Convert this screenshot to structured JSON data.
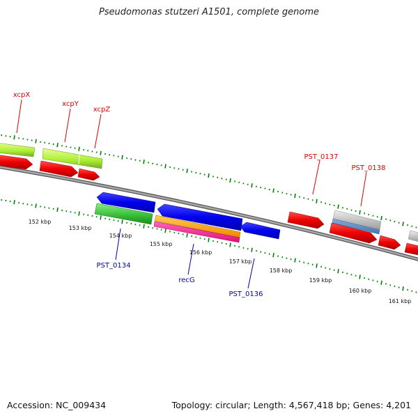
{
  "title": "Pseudomonas stutzeri A1501, complete genome",
  "footer": {
    "accession": "Accession: NC_009434",
    "summary": "Topology: circular; Length: 4,567,418 bp; Genes: 4,201"
  },
  "colors": {
    "backbone": "#888888",
    "tick": "#008000",
    "forward_label": "#dd0000",
    "reverse_label": "#0000aa"
  },
  "gene_labels": {
    "forward": [
      "xcpX",
      "xcpY",
      "xcpZ",
      "PST_0137",
      "PST_0138"
    ],
    "reverse": [
      "PST_0134",
      "recG",
      "PST_0136"
    ]
  },
  "scale_labels": [
    "152 kbp",
    "153 kbp",
    "154 kbp",
    "155 kbp",
    "156 kbp",
    "157 kbp",
    "158 kbp",
    "159 kbp",
    "160 kbp",
    "161 kbp"
  ]
}
